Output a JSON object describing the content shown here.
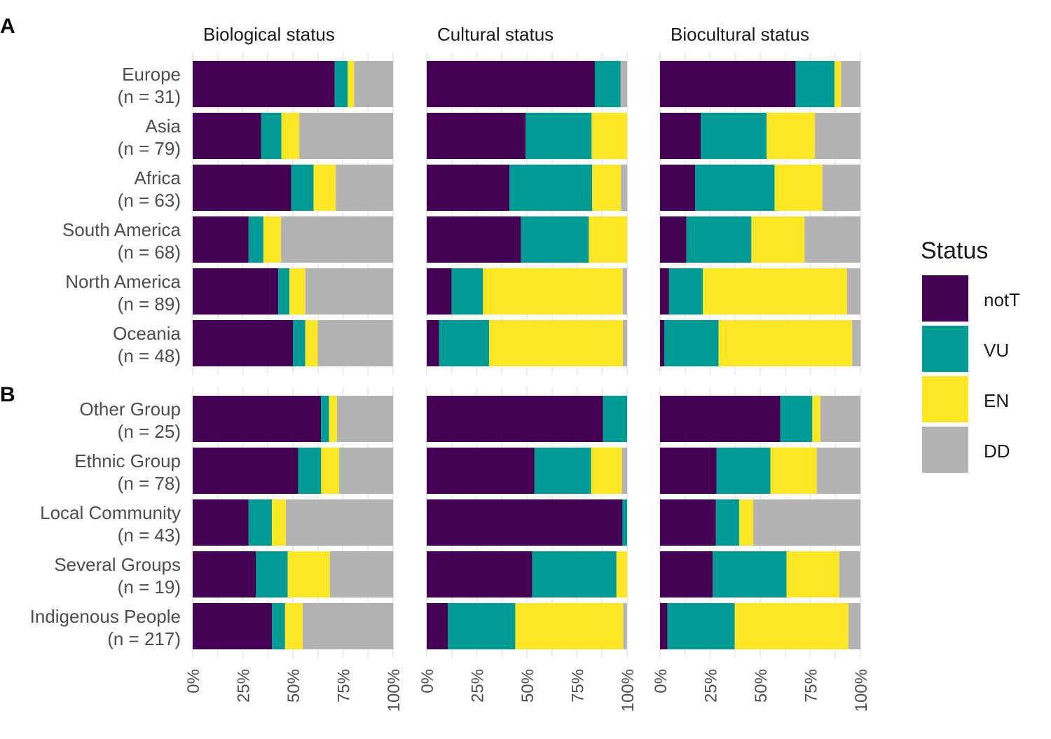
{
  "chart_data": {
    "type": "bar",
    "orientation": "horizontal",
    "stacked": true,
    "facets": [
      "Biological status",
      "Cultural status",
      "Biocultural status"
    ],
    "legend": {
      "title": "Status",
      "position": "right",
      "entries": [
        {
          "key": "notT",
          "label": "notT",
          "color": "#440154"
        },
        {
          "key": "VU",
          "label": "VU",
          "color": "#009b95"
        },
        {
          "key": "EN",
          "label": "EN",
          "color": "#fde725"
        },
        {
          "key": "DD",
          "label": "DD",
          "color": "#b3b3b3"
        }
      ]
    },
    "x_ticks": [
      "0%",
      "25%",
      "50%",
      "75%",
      "100%"
    ],
    "xlim": [
      0,
      100
    ],
    "grid": true,
    "panels": [
      {
        "label": "A",
        "categories": [
          {
            "name": "Europe",
            "n": "(n = 31)",
            "values": [
              [
                70.9,
                6.5,
                3.2,
                19.4
              ],
              [
                83.9,
                12.9,
                0,
                3.2
              ],
              [
                67.7,
                19.4,
                3.2,
                9.7
              ]
            ]
          },
          {
            "name": "Asia",
            "n": "(n = 79)",
            "values": [
              [
                34.2,
                10.1,
                8.9,
                46.8
              ],
              [
                49.4,
                32.9,
                17.7,
                0
              ],
              [
                20.3,
                32.9,
                24.1,
                22.8
              ]
            ]
          },
          {
            "name": "Africa",
            "n": "(n = 63)",
            "values": [
              [
                49.2,
                11.1,
                11.1,
                28.6
              ],
              [
                41.3,
                41.3,
                14.3,
                3.2
              ],
              [
                17.5,
                39.7,
                23.8,
                19.0
              ]
            ]
          },
          {
            "name": "South America",
            "n": "(n = 68)",
            "values": [
              [
                27.9,
                7.4,
                8.8,
                55.9
              ],
              [
                47.1,
                33.8,
                19.1,
                0
              ],
              [
                13.2,
                32.4,
                26.5,
                27.9
              ]
            ]
          },
          {
            "name": "North America",
            "n": "(n = 89)",
            "values": [
              [
                42.7,
                5.6,
                7.9,
                43.8
              ],
              [
                12.4,
                15.7,
                69.7,
                2.2
              ],
              [
                4.5,
                16.9,
                71.9,
                6.7
              ]
            ]
          },
          {
            "name": "Oceania",
            "n": "(n = 48)",
            "values": [
              [
                50.0,
                6.2,
                6.2,
                37.5
              ],
              [
                6.2,
                25.0,
                66.7,
                2.1
              ],
              [
                2.1,
                27.1,
                66.7,
                4.2
              ]
            ]
          }
        ]
      },
      {
        "label": "B",
        "categories": [
          {
            "name": "Other  Group",
            "n": "(n = 25)",
            "values": [
              [
                64.0,
                4.0,
                4.0,
                28.0
              ],
              [
                88.0,
                12.0,
                0,
                0
              ],
              [
                60.0,
                16.0,
                4.0,
                20.0
              ]
            ]
          },
          {
            "name": "Ethnic Group",
            "n": "(n = 78)",
            "values": [
              [
                52.6,
                11.5,
                9.0,
                26.9
              ],
              [
                53.8,
                28.2,
                15.4,
                2.6
              ],
              [
                28.2,
                26.9,
                23.1,
                21.8
              ]
            ]
          },
          {
            "name": "Local Community",
            "n": "(n = 43)",
            "values": [
              [
                27.9,
                11.6,
                7.0,
                53.5
              ],
              [
                97.7,
                2.3,
                0,
                0
              ],
              [
                27.9,
                11.6,
                7.0,
                53.5
              ]
            ]
          },
          {
            "name": "Several  Groups",
            "n": "(n = 19)",
            "values": [
              [
                31.6,
                15.8,
                21.1,
                31.6
              ],
              [
                52.6,
                42.1,
                5.3,
                0
              ],
              [
                26.3,
                36.8,
                26.3,
                10.5
              ]
            ]
          },
          {
            "name": "Indigenous People",
            "n": "(n = 217)",
            "values": [
              [
                39.6,
                6.5,
                8.8,
                45.2
              ],
              [
                10.6,
                33.6,
                53.9,
                1.8
              ],
              [
                3.7,
                33.6,
                56.7,
                6.0
              ]
            ]
          }
        ]
      }
    ]
  }
}
